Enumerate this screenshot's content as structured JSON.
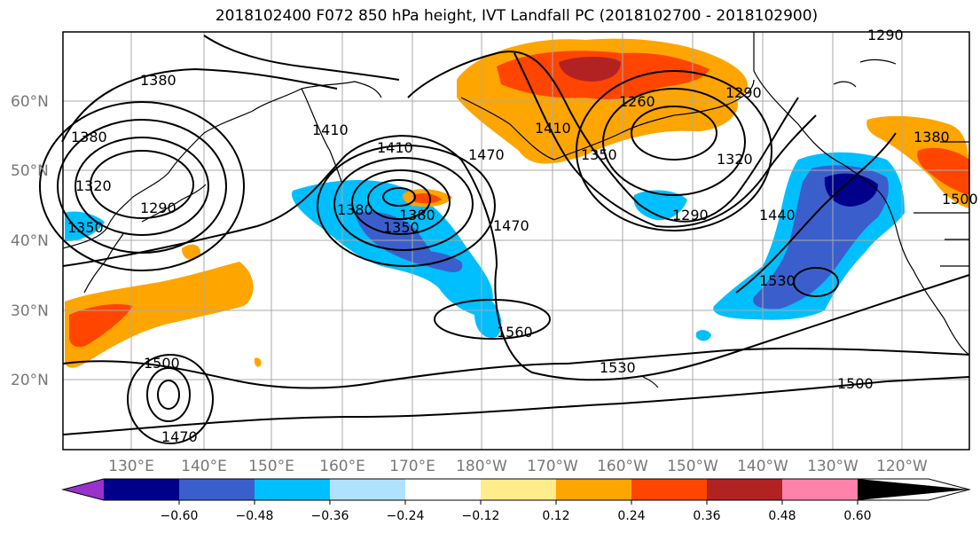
{
  "title": "2018102400 F072 850 hPa height, IVT Landfall PC (2018102700 - 2018102900)",
  "lat_labels": [
    "60°N",
    "50°N",
    "40°N",
    "30°N",
    "20°N"
  ],
  "lon_labels": [
    "130°E",
    "140°E",
    "150°E",
    "160°E",
    "170°E",
    "180°W",
    "170°W",
    "160°W",
    "150°W",
    "140°W",
    "130°W",
    "120°W"
  ],
  "contour_labels": [
    "1380",
    "1380",
    "1320",
    "1290",
    "1350",
    "1410",
    "1410",
    "1380",
    "1350",
    "1380",
    "1470",
    "1470",
    "1410",
    "1350",
    "1260",
    "1290",
    "1320",
    "1290",
    "1440",
    "1530",
    "1380",
    "1500",
    "1560",
    "1530",
    "1500",
    "1500",
    "1470",
    "1290"
  ],
  "colorbar": {
    "ticks": [
      "−0.60",
      "−0.48",
      "−0.36",
      "−0.24",
      "−0.12",
      "0.12",
      "0.24",
      "0.36",
      "0.48",
      "0.60"
    ],
    "colors": [
      "#9932cc",
      "#00008b",
      "#3a5fcd",
      "#00bfff",
      "#b0e2ff",
      "#ffffff",
      "#ffec8b",
      "#ffa500",
      "#ff4500",
      "#b22222",
      "#ff82ab"
    ]
  },
  "colors": {
    "land_outline": "#000000",
    "gridlines": "#a9a9a9",
    "contours": "#000000"
  }
}
